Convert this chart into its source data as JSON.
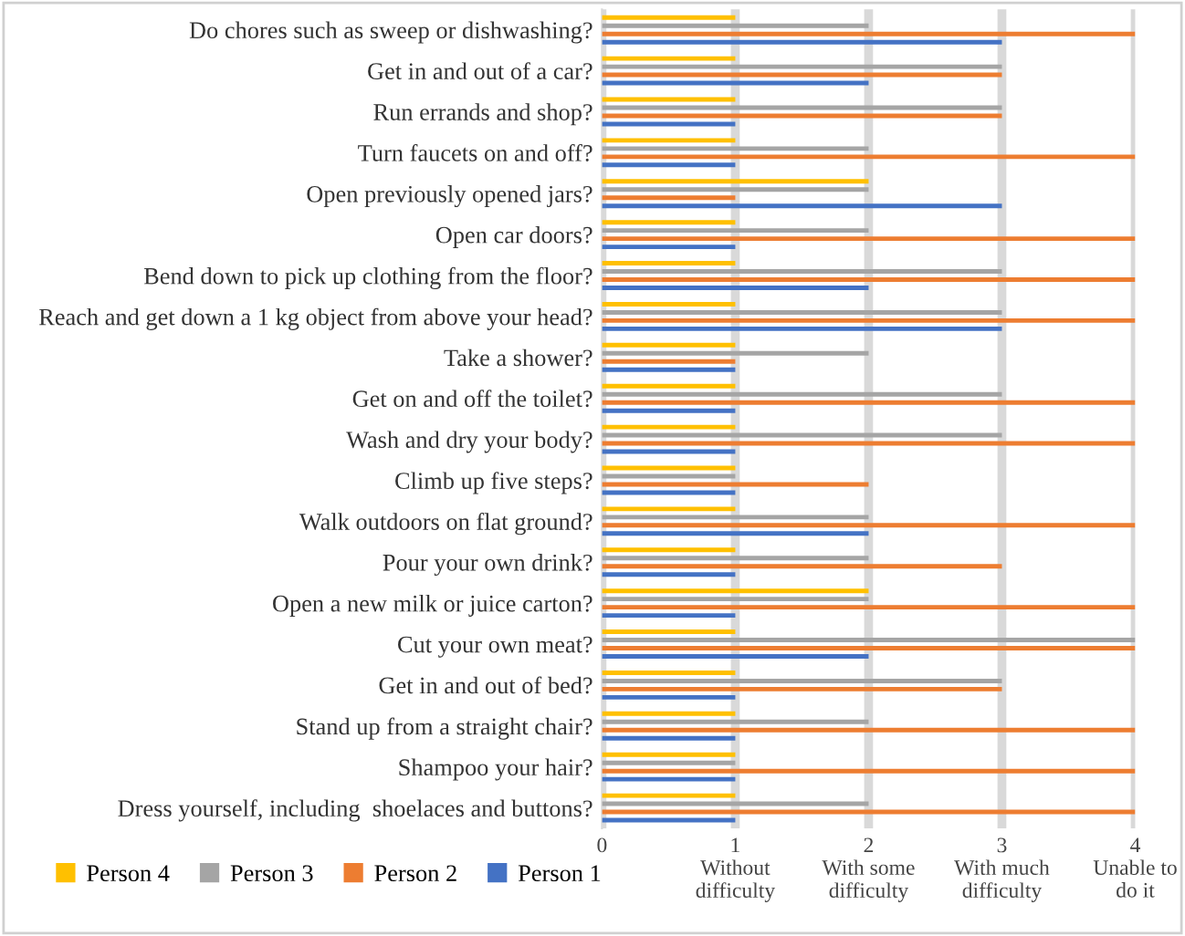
{
  "chart_data": {
    "type": "bar",
    "orientation": "horizontal",
    "categories": [
      "Do chores such as sweep or dishwashing?",
      "Get in and out of a car?",
      "Run errands and shop?",
      "Turn faucets on and off?",
      "Open previously opened jars?",
      "Open car doors?",
      "Bend down to pick up clothing from the floor?",
      "Reach and get down a 1 kg object from above your head?",
      "Take a shower?",
      "Get on and off the toilet?",
      "Wash and dry your body?",
      "Climb up five steps?",
      "Walk outdoors on flat ground?",
      "Pour your own drink?",
      "Open a new milk or juice carton?",
      "Cut your own meat?",
      "Get in and out of bed?",
      "Stand up from a straight chair?",
      "Shampoo your hair?",
      "Dress yourself, including  shoelaces and buttons?"
    ],
    "series": [
      {
        "name": "Person 4",
        "color": "#ffc000",
        "values": [
          1,
          1,
          1,
          1,
          2,
          1,
          1,
          1,
          1,
          1,
          1,
          1,
          1,
          1,
          2,
          1,
          1,
          1,
          1,
          1
        ]
      },
      {
        "name": "Person 3",
        "color": "#a5a5a5",
        "values": [
          2,
          3,
          3,
          2,
          2,
          2,
          3,
          3,
          2,
          3,
          3,
          1,
          2,
          2,
          2,
          4,
          3,
          2,
          1,
          2
        ]
      },
      {
        "name": "Person 2",
        "color": "#ed7d31",
        "values": [
          4,
          3,
          3,
          4,
          1,
          4,
          4,
          4,
          1,
          4,
          4,
          2,
          4,
          3,
          4,
          4,
          3,
          4,
          4,
          4
        ]
      },
      {
        "name": "Person 1",
        "color": "#4472c4",
        "values": [
          3,
          2,
          1,
          1,
          3,
          1,
          2,
          3,
          1,
          1,
          1,
          1,
          2,
          1,
          1,
          2,
          1,
          1,
          1,
          1
        ]
      }
    ],
    "xlim": [
      0,
      4
    ],
    "xticks": [
      0,
      {
        "value": 1,
        "label": "1\nWithout\ndifficulty"
      },
      {
        "value": 2,
        "label": "2\nWith some\ndifficulty"
      },
      {
        "value": 3,
        "label": "3\nWith much\ndifficulty"
      },
      {
        "value": 4,
        "label": "4\nUnable to\ndo it"
      }
    ],
    "grid": "x",
    "legend": "bottom left"
  }
}
